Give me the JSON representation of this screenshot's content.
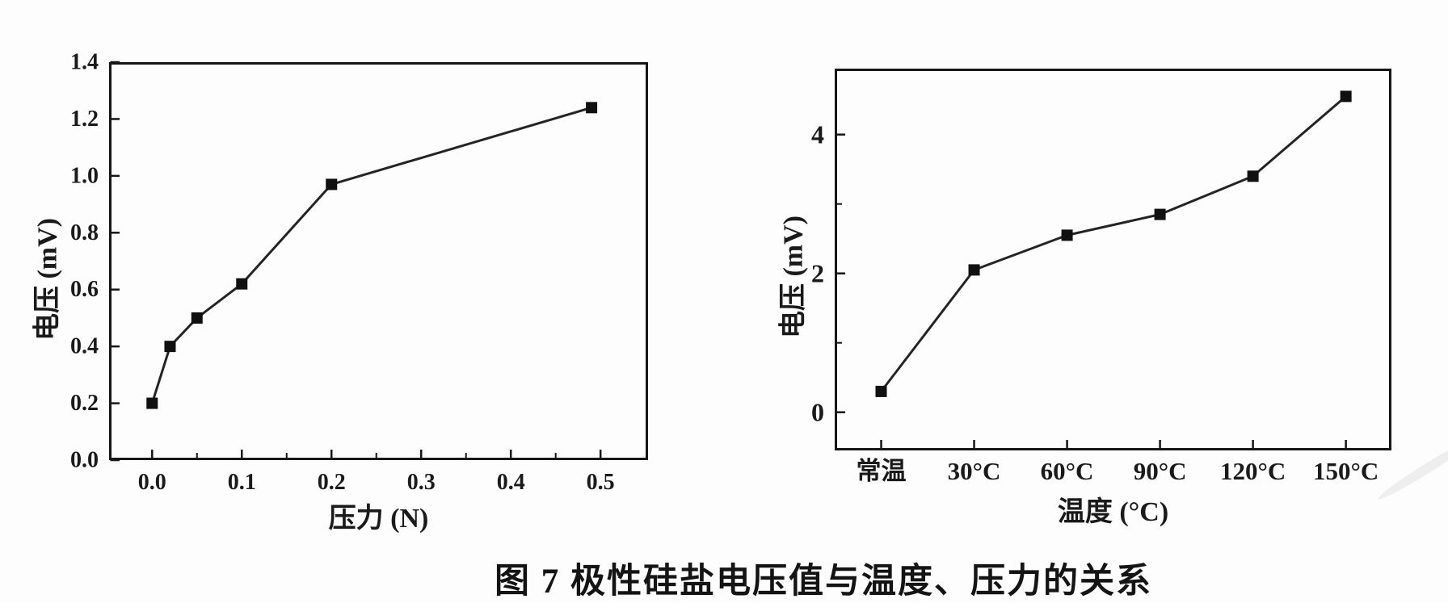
{
  "figure": {
    "caption": "图 7  极性硅盐电压值与温度、压力的关系"
  },
  "chart_data": [
    {
      "type": "line",
      "title": "",
      "xlabel": "压力 (N)",
      "ylabel": "电压 (mV)",
      "x": [
        0.0,
        0.02,
        0.05,
        0.1,
        0.2,
        0.49
      ],
      "y": [
        0.2,
        0.4,
        0.5,
        0.62,
        0.97,
        1.24
      ],
      "xticks": [
        0.0,
        0.1,
        0.2,
        0.3,
        0.4,
        0.5
      ],
      "xtick_labels": [
        "0.0",
        "0.1",
        "0.2",
        "0.3",
        "0.4",
        "0.5"
      ],
      "x_minor_ticks": [
        0.05,
        0.15,
        0.25,
        0.35,
        0.45
      ],
      "yticks": [
        0.0,
        0.2,
        0.4,
        0.6,
        0.8,
        1.0,
        1.2,
        1.4
      ],
      "ytick_labels": [
        "0.0",
        "0.2",
        "0.4",
        "0.6",
        "0.8",
        "1.0",
        "1.2",
        "1.4"
      ],
      "y_minor_ticks": [],
      "xlim": [
        -0.048,
        0.553
      ],
      "ylim": [
        0,
        1.4
      ],
      "grid": false,
      "legend": "none",
      "marker": "filled-square",
      "line_color": "#242424",
      "marker_color": "#101010"
    },
    {
      "type": "line",
      "title": "",
      "xlabel": "温度 (°C)",
      "ylabel": "电压 (mV)",
      "categories": [
        "常温",
        "30°C",
        "60°C",
        "90°C",
        "120°C",
        "150°C"
      ],
      "values": [
        0.3,
        2.05,
        2.55,
        2.85,
        3.4,
        4.55
      ],
      "yticks": [
        0,
        2,
        4
      ],
      "ytick_labels": [
        "0",
        "2",
        "4"
      ],
      "y_minor_ticks": [
        1,
        3
      ],
      "x_minor_ticks": [],
      "xlim": [
        -0.5,
        5.49
      ],
      "ylim": [
        -0.55,
        4.95
      ],
      "grid": false,
      "legend": "none",
      "marker": "filled-square",
      "line_color": "#242424",
      "marker_color": "#101010"
    }
  ]
}
